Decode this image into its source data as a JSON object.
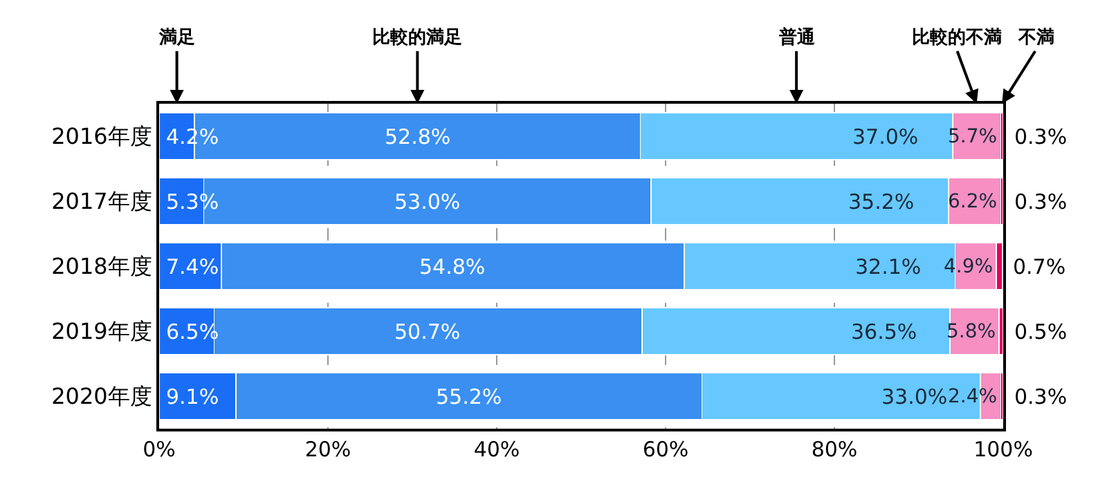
{
  "chart_data": {
    "type": "bar",
    "orientation": "horizontal",
    "stacked": true,
    "categories": [
      "2016年度",
      "2017年度",
      "2018年度",
      "2019年度",
      "2020年度"
    ],
    "series": [
      {
        "name": "満足",
        "color": "#1a6ef5",
        "values": [
          4.2,
          5.3,
          7.4,
          6.5,
          9.1
        ],
        "value_labels": [
          "4.2%",
          "5.3%",
          "7.4%",
          "6.5%",
          "9.1%"
        ]
      },
      {
        "name": "比較的満足",
        "color": "#3a8ff0",
        "values": [
          52.8,
          53.0,
          54.8,
          50.7,
          55.2
        ],
        "value_labels": [
          "52.8%",
          "53.0%",
          "54.8%",
          "50.7%",
          "55.2%"
        ]
      },
      {
        "name": "普通",
        "color": "#66c8ff",
        "values": [
          37.0,
          35.2,
          32.1,
          36.5,
          33.0
        ],
        "value_labels": [
          "37.0%",
          "35.2%",
          "32.1%",
          "36.5%",
          "33.0%"
        ]
      },
      {
        "name": "比較的不満",
        "color": "#f78fc3",
        "values": [
          5.7,
          6.2,
          4.9,
          5.8,
          2.4
        ],
        "value_labels": [
          "5.7%",
          "6.2%",
          "4.9%",
          "5.8%",
          "2.4%"
        ]
      },
      {
        "name": "不満",
        "color": "#e8005a",
        "values": [
          0.3,
          0.3,
          0.7,
          0.5,
          0.3
        ],
        "value_labels": [
          "0.3%",
          "0.3%",
          "0.7%",
          "0.5%",
          "0.3%"
        ]
      }
    ],
    "xlim": [
      0,
      100
    ],
    "xticks": [
      {
        "value": 0,
        "label": "0%"
      },
      {
        "value": 20,
        "label": "20%"
      },
      {
        "value": 40,
        "label": "40%"
      },
      {
        "value": 60,
        "label": "60%"
      },
      {
        "value": 80,
        "label": "80%"
      },
      {
        "value": 100,
        "label": "100%"
      }
    ],
    "grid": "x",
    "legend": "top"
  }
}
